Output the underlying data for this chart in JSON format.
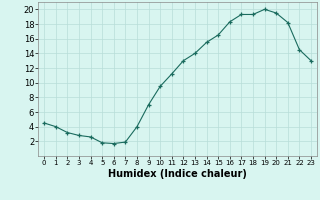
{
  "x": [
    0,
    1,
    2,
    3,
    4,
    5,
    6,
    7,
    8,
    9,
    10,
    11,
    12,
    13,
    14,
    15,
    16,
    17,
    18,
    19,
    20,
    21,
    22,
    23
  ],
  "y": [
    4.5,
    4.0,
    3.2,
    2.8,
    2.6,
    1.8,
    1.7,
    1.9,
    4.0,
    7.0,
    9.5,
    11.2,
    13.0,
    14.0,
    15.5,
    16.5,
    18.3,
    19.3,
    19.3,
    20.0,
    19.5,
    18.2,
    14.5,
    13.0
  ],
  "xlabel": "Humidex (Indice chaleur)",
  "xlim": [
    -0.5,
    23.5
  ],
  "ylim": [
    0,
    21
  ],
  "yticks": [
    2,
    4,
    6,
    8,
    10,
    12,
    14,
    16,
    18,
    20
  ],
  "xticks": [
    0,
    1,
    2,
    3,
    4,
    5,
    6,
    7,
    8,
    9,
    10,
    11,
    12,
    13,
    14,
    15,
    16,
    17,
    18,
    19,
    20,
    21,
    22,
    23
  ],
  "line_color": "#1a6b5e",
  "marker": "+",
  "bg_color": "#d8f5f0",
  "grid_color": "#b8ddd8",
  "label_fontsize": 7,
  "tick_fontsize_x": 5,
  "tick_fontsize_y": 6
}
